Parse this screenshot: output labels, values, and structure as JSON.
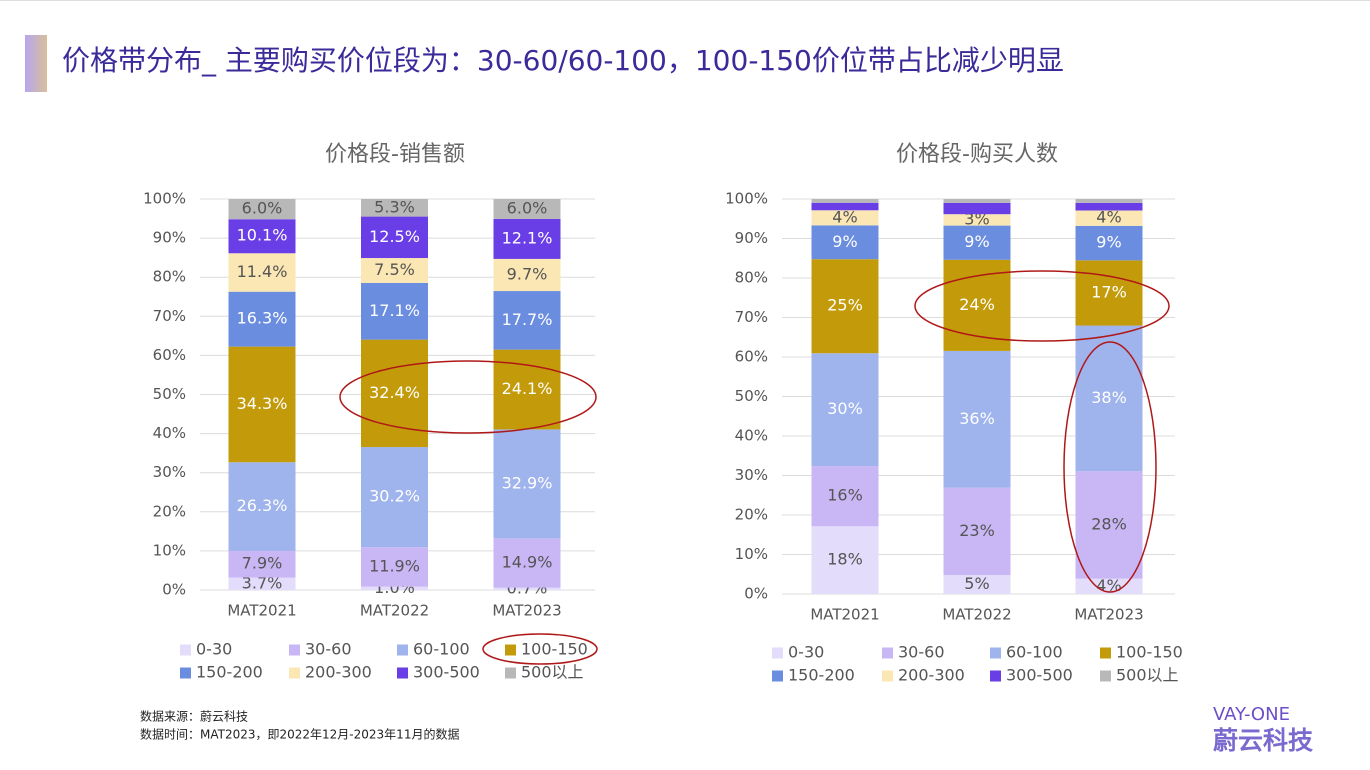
{
  "header": {
    "title": "价格带分布_ 主要购买价位段为：30-60/60-100，100-150价位带占比减少明显"
  },
  "footer": {
    "source": "数据来源：蔚云科技",
    "period": "数据时间：MAT2023，即2022年12月-2023年11月的数据"
  },
  "logo": {
    "name": "VAY-ONE",
    "cn": "蔚云科技"
  },
  "chart_data": [
    {
      "type": "bar",
      "stacked": "percent",
      "title": "价格段-销售额",
      "categories": [
        "MAT2021",
        "MAT2022",
        "MAT2023"
      ],
      "ylim": [
        0,
        100
      ],
      "yticks": [
        {
          "value": 0,
          "label": "0%"
        },
        {
          "value": 10,
          "label": "10%"
        },
        {
          "value": 20,
          "label": "20%"
        },
        {
          "value": 30,
          "label": "30%"
        },
        {
          "value": 40,
          "label": "40%"
        },
        {
          "value": 50,
          "label": "50%"
        },
        {
          "value": 60,
          "label": "60%"
        },
        {
          "value": 70,
          "label": "70%"
        },
        {
          "value": 80,
          "label": "80%"
        },
        {
          "value": 90,
          "label": "90%"
        },
        {
          "value": 100,
          "label": "100%"
        }
      ],
      "grid": true,
      "series": [
        {
          "name": "0-30",
          "color": "#e3dcfa",
          "values": [
            3.7,
            1.0,
            0.7
          ],
          "value_labels": [
            "3.7%",
            "1.0%",
            "0.7%"
          ]
        },
        {
          "name": "30-60",
          "color": "#c9b6f4",
          "values": [
            7.9,
            11.9,
            14.9
          ],
          "value_labels": [
            "7.9%",
            "11.9%",
            "14.9%"
          ]
        },
        {
          "name": "60-100",
          "color": "#9fb3ec",
          "values": [
            26.3,
            30.2,
            32.9
          ],
          "value_labels": [
            "26.3%",
            "30.2%",
            "32.9%"
          ]
        },
        {
          "name": "100-150",
          "color": "#c39b0a",
          "values": [
            34.3,
            32.4,
            24.1
          ],
          "value_labels": [
            "34.3%",
            "32.4%",
            "24.1%"
          ]
        },
        {
          "name": "150-200",
          "color": "#6b8de0",
          "values": [
            16.3,
            17.1,
            17.7
          ],
          "value_labels": [
            "16.3%",
            "17.1%",
            "17.7%"
          ]
        },
        {
          "name": "200-300",
          "color": "#fbe7b3",
          "values": [
            11.4,
            7.5,
            9.7
          ],
          "value_labels": [
            "11.4%",
            "7.5%",
            "9.7%"
          ]
        },
        {
          "name": "300-500",
          "color": "#6a3ee6",
          "values": [
            10.1,
            12.5,
            12.1
          ],
          "value_labels": [
            "10.1%",
            "12.5%",
            "12.1%"
          ]
        },
        {
          "name": "500以上",
          "color": "#b8b8b8",
          "values": [
            6.0,
            5.3,
            6.0
          ],
          "value_labels": [
            "6.0%",
            "5.3%",
            "6.0%"
          ]
        }
      ]
    },
    {
      "type": "bar",
      "stacked": "percent",
      "title": "价格段-购买人数",
      "categories": [
        "MAT2021",
        "MAT2022",
        "MAT2023"
      ],
      "ylim": [
        0,
        100
      ],
      "yticks": [
        {
          "value": 0,
          "label": "0%"
        },
        {
          "value": 10,
          "label": "10%"
        },
        {
          "value": 20,
          "label": "20%"
        },
        {
          "value": 30,
          "label": "30%"
        },
        {
          "value": 40,
          "label": "40%"
        },
        {
          "value": 50,
          "label": "50%"
        },
        {
          "value": 60,
          "label": "60%"
        },
        {
          "value": 70,
          "label": "70%"
        },
        {
          "value": 80,
          "label": "80%"
        },
        {
          "value": 90,
          "label": "90%"
        },
        {
          "value": 100,
          "label": "100%"
        }
      ],
      "grid": true,
      "series": [
        {
          "name": "0-30",
          "color": "#e3dcfa",
          "values": [
            18,
            5,
            4
          ],
          "value_labels": [
            "18%",
            "5%",
            "4%"
          ]
        },
        {
          "name": "30-60",
          "color": "#c9b6f4",
          "values": [
            16,
            23,
            28
          ],
          "value_labels": [
            "16%",
            "23%",
            "28%"
          ]
        },
        {
          "name": "60-100",
          "color": "#9fb3ec",
          "values": [
            30,
            36,
            38
          ],
          "value_labels": [
            "30%",
            "36%",
            "38%"
          ]
        },
        {
          "name": "100-150",
          "color": "#c39b0a",
          "values": [
            25,
            24,
            17
          ],
          "value_labels": [
            "25%",
            "24%",
            "17%"
          ]
        },
        {
          "name": "150-200",
          "color": "#6b8de0",
          "values": [
            9,
            9,
            9
          ],
          "value_labels": [
            "9%",
            "9%",
            "9%"
          ]
        },
        {
          "name": "200-300",
          "color": "#fbe7b3",
          "values": [
            4,
            3,
            4
          ],
          "value_labels": [
            "4%",
            "3%",
            "4%"
          ]
        },
        {
          "name": "300-500",
          "color": "#6a3ee6",
          "values": [
            2,
            3,
            2
          ]
        },
        {
          "name": "500以上",
          "color": "#b8b8b8",
          "values": [
            1,
            1,
            1
          ]
        }
      ]
    }
  ]
}
